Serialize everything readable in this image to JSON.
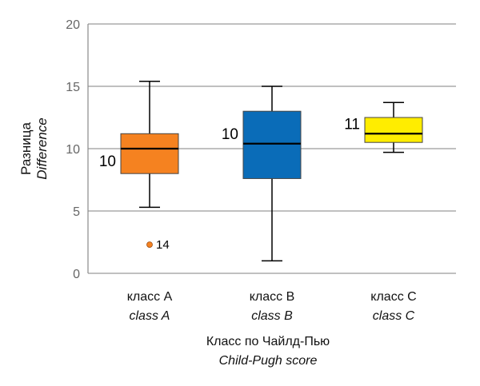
{
  "chart_data": {
    "type": "box",
    "ylabel": "Разница",
    "ylabel_en": "Difference",
    "xlabel": "Класс по Чайлд-Пью",
    "xlabel_en": "Child-Pugh score",
    "ylim": [
      0,
      20
    ],
    "yticks": [
      "0",
      "5",
      "10",
      "15",
      "20"
    ],
    "grid": true,
    "categories": [
      {
        "label": "класс A",
        "label_en": "class A",
        "color": "#F58220",
        "whisker_low": 5.3,
        "q1": 8.0,
        "median": 10.0,
        "q3": 11.2,
        "whisker_high": 15.4,
        "median_label": "10",
        "outliers": [
          {
            "value": 2.3,
            "label": "14"
          }
        ]
      },
      {
        "label": "класс B",
        "label_en": "class B",
        "color": "#0A6CB8",
        "whisker_low": 1.0,
        "q1": 7.6,
        "median": 10.4,
        "q3": 13.0,
        "whisker_high": 15.0,
        "median_label": "10",
        "outliers": []
      },
      {
        "label": "класс C",
        "label_en": "class C",
        "color": "#FFED00",
        "whisker_low": 9.7,
        "q1": 10.5,
        "median": 11.2,
        "q3": 12.5,
        "whisker_high": 13.7,
        "median_label": "11",
        "outliers": []
      }
    ]
  }
}
